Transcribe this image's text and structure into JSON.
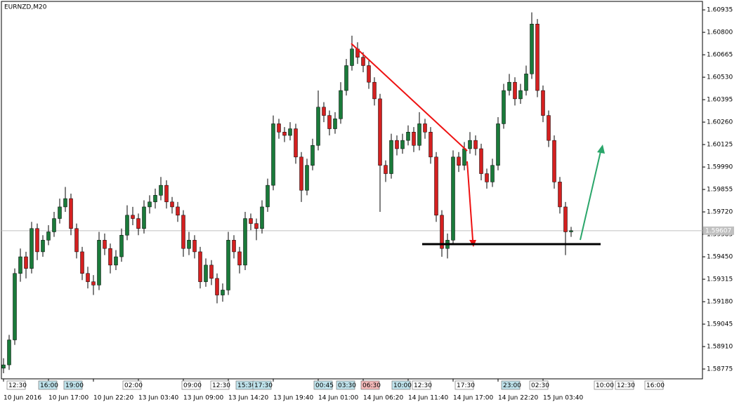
{
  "chart_data": {
    "type": "candlestick",
    "title": "EURNZD,M20",
    "bull_color": "#1a7a3a",
    "bear_color": "#d42020",
    "ylim": [
      1.58716,
      1.60986
    ],
    "yticks": [
      1.60935,
      {
        "value": 1.608,
        "label": "1.60800"
      },
      1.60665,
      {
        "value": 1.6053,
        "label": "1.60530"
      },
      1.60395,
      {
        "value": 1.6026,
        "label": "1.60260"
      },
      1.60125,
      {
        "value": 1.5999,
        "label": "1.59990"
      },
      1.59855,
      {
        "value": 1.5972,
        "label": "1.59720"
      },
      1.59585,
      {
        "value": 1.5945,
        "label": "1.59450"
      },
      1.59315,
      {
        "value": 1.5918,
        "label": "1.59180"
      },
      1.59045,
      {
        "value": 1.5891,
        "label": "1.58910"
      },
      1.58775
    ],
    "last_price": 1.59607,
    "categories": [
      "10 Jun 2016",
      null,
      null,
      null,
      null,
      null,
      null,
      null,
      "10 Jun 17:00",
      null,
      null,
      null,
      null,
      null,
      null,
      null,
      "10 Jun 22:20",
      null,
      null,
      null,
      null,
      null,
      null,
      null,
      "13 Jun 03:40",
      null,
      null,
      null,
      null,
      null,
      null,
      null,
      "13 Jun 09:00",
      null,
      null,
      null,
      null,
      null,
      null,
      null,
      "13 Jun 14:20",
      null,
      null,
      null,
      null,
      null,
      null,
      null,
      "13 Jun 19:40",
      null,
      null,
      null,
      null,
      null,
      null,
      null,
      "14 Jun 01:00",
      null,
      null,
      null,
      null,
      null,
      null,
      null,
      "14 Jun 06:20",
      null,
      null,
      null,
      null,
      null,
      null,
      null,
      "14 Jun 11:40",
      null,
      null,
      null,
      null,
      null,
      null,
      null,
      "14 Jun 17:00",
      null,
      null,
      null,
      null,
      null,
      null,
      null,
      "14 Jun 22:20",
      null,
      null,
      null,
      null,
      null,
      null,
      null,
      "15 Jun 03:40",
      null,
      null,
      null,
      null,
      null
    ],
    "open": [
      1.5878,
      1.588,
      1.5895,
      1.5935,
      1.5945,
      1.5938,
      1.5962,
      1.5948,
      1.5955,
      1.596,
      1.5968,
      1.5975,
      1.598,
      1.5962,
      1.5948,
      1.5935,
      1.593,
      1.5928,
      1.5955,
      1.595,
      1.594,
      1.5945,
      1.5958,
      1.597,
      1.5968,
      1.5962,
      1.5975,
      1.5978,
      1.5982,
      1.5988,
      1.5978,
      1.5975,
      1.597,
      1.595,
      1.5955,
      1.5948,
      1.593,
      1.594,
      1.5932,
      1.5922,
      1.5925,
      1.5955,
      1.5948,
      1.594,
      1.5968,
      1.5965,
      1.5962,
      1.5975,
      1.5988,
      1.6025,
      1.602,
      1.6018,
      1.6022,
      1.6005,
      1.5985,
      1.6,
      1.6012,
      1.6035,
      1.603,
      1.6022,
      1.6028,
      1.6045,
      1.606,
      1.607,
      1.6065,
      1.606,
      1.605,
      1.604,
      1.6,
      1.5995,
      1.6015,
      1.601,
      1.6015,
      1.602,
      1.6012,
      1.6025,
      1.602,
      1.6005,
      1.597,
      1.595,
      1.5955,
      1.6005,
      1.6,
      1.601,
      1.6015,
      1.601,
      1.5995,
      1.599,
      1.6,
      1.6025,
      1.6045,
      1.605,
      1.604,
      1.6045,
      1.6055,
      1.6085,
      1.6045,
      1.603,
      1.6015,
      1.599,
      1.5975,
      1.596
    ],
    "high": [
      1.5884,
      1.5898,
      1.5938,
      1.595,
      1.5948,
      1.5966,
      1.5965,
      1.5958,
      1.5964,
      1.5972,
      1.598,
      1.5987,
      1.5983,
      1.5965,
      1.5951,
      1.5939,
      1.5934,
      1.596,
      1.5959,
      1.5953,
      1.5949,
      1.5962,
      1.5976,
      1.5975,
      1.5971,
      1.5979,
      1.5982,
      1.5986,
      1.5993,
      1.5991,
      1.5981,
      1.5978,
      1.5973,
      1.596,
      1.5958,
      1.5951,
      1.5944,
      1.5943,
      1.5935,
      1.5929,
      1.596,
      1.5958,
      1.5951,
      1.5972,
      1.5971,
      1.5968,
      1.5979,
      1.5992,
      1.603,
      1.6028,
      1.6023,
      1.6026,
      1.6025,
      1.6008,
      1.6004,
      1.6016,
      1.6045,
      1.6038,
      1.6033,
      1.6032,
      1.605,
      1.6064,
      1.6078,
      1.6074,
      1.6068,
      1.6063,
      1.6053,
      1.6043,
      1.6003,
      1.6019,
      1.6018,
      1.6019,
      1.6024,
      1.6023,
      1.6032,
      1.6028,
      1.6023,
      1.6008,
      1.5973,
      1.5959,
      1.6009,
      1.6008,
      1.6014,
      1.602,
      1.6018,
      1.6013,
      1.5998,
      1.6004,
      1.6029,
      1.6049,
      1.6055,
      1.6053,
      1.6049,
      1.606,
      1.6092,
      1.6088,
      1.6048,
      1.6033,
      1.6018,
      1.5993,
      1.5978,
      1.5963
    ],
    "low": [
      1.5875,
      1.5877,
      1.5892,
      1.593,
      1.5932,
      1.5935,
      1.5943,
      1.5945,
      1.5952,
      1.5957,
      1.5965,
      1.5972,
      1.5958,
      1.5944,
      1.5931,
      1.5926,
      1.5922,
      1.5925,
      1.5946,
      1.5935,
      1.5937,
      1.5942,
      1.5955,
      1.5964,
      1.5958,
      1.5959,
      1.5971,
      1.5974,
      1.5979,
      1.5974,
      1.5971,
      1.5966,
      1.5945,
      1.5946,
      1.5944,
      1.5926,
      1.5927,
      1.5928,
      1.5917,
      1.5918,
      1.5922,
      1.5944,
      1.5935,
      1.5937,
      1.5961,
      1.5955,
      1.5959,
      1.5972,
      1.5985,
      1.6016,
      1.6014,
      1.6015,
      1.6001,
      1.5978,
      1.5982,
      1.5997,
      1.6009,
      1.6026,
      1.6018,
      1.6019,
      1.6025,
      1.6042,
      1.6057,
      1.6061,
      1.6056,
      1.6046,
      1.6036,
      1.5972,
      1.599,
      1.5992,
      1.6006,
      1.6007,
      1.6012,
      1.6008,
      1.6009,
      1.6016,
      1.6001,
      1.5966,
      1.5945,
      1.5944,
      1.5952,
      1.5996,
      1.5997,
      1.6007,
      1.6006,
      1.5991,
      1.5986,
      1.5987,
      1.5997,
      1.6022,
      1.6042,
      1.6036,
      1.6037,
      1.6042,
      1.6052,
      1.6041,
      1.6026,
      1.6011,
      1.5986,
      1.5971,
      1.5946,
      1.5957
    ],
    "close": [
      1.588,
      1.5895,
      1.5935,
      1.5945,
      1.5938,
      1.5962,
      1.5948,
      1.5955,
      1.596,
      1.5968,
      1.5975,
      1.598,
      1.5962,
      1.5948,
      1.5935,
      1.593,
      1.5928,
      1.5955,
      1.595,
      1.594,
      1.5945,
      1.5958,
      1.597,
      1.5968,
      1.5962,
      1.5975,
      1.5978,
      1.5982,
      1.5988,
      1.5978,
      1.5975,
      1.597,
      1.595,
      1.5955,
      1.5948,
      1.593,
      1.594,
      1.5932,
      1.5922,
      1.5925,
      1.5955,
      1.5948,
      1.594,
      1.5968,
      1.5965,
      1.5962,
      1.5975,
      1.5988,
      1.6025,
      1.602,
      1.6018,
      1.6022,
      1.6005,
      1.5985,
      1.6,
      1.6012,
      1.6035,
      1.603,
      1.6022,
      1.6028,
      1.6045,
      1.606,
      1.607,
      1.6065,
      1.606,
      1.605,
      1.604,
      1.6,
      1.5995,
      1.6015,
      1.601,
      1.6015,
      1.602,
      1.6012,
      1.6025,
      1.602,
      1.6005,
      1.597,
      1.595,
      1.5955,
      1.6005,
      1.6,
      1.601,
      1.6015,
      1.601,
      1.5995,
      1.599,
      1.6,
      1.6025,
      1.6045,
      1.605,
      1.604,
      1.6045,
      1.6055,
      1.6085,
      1.6045,
      1.603,
      1.6015,
      1.599,
      1.5975,
      1.596,
      1.59607
    ],
    "time_markers": [
      {
        "label": "12:30",
        "color": "#ffffff"
      },
      {
        "label": "16:00",
        "color": "#bfe3ec"
      },
      {
        "label": "19:00",
        "color": "#bfe3ec"
      },
      {
        "label": "02:00",
        "color": "#ffffff"
      },
      {
        "label": "09:00",
        "color": "#ffffff"
      },
      {
        "label": "12:30",
        "color": "#ffffff"
      },
      {
        "label": "15:30",
        "color": "#bfe3ec"
      },
      {
        "label": "17:30",
        "color": "#bfe3ec"
      },
      {
        "label": "00:45",
        "color": "#bfe3ec"
      },
      {
        "label": "03:30",
        "color": "#bfe3ec"
      },
      {
        "label": "06:30",
        "color": "#f4b8b8"
      },
      {
        "label": "10:00",
        "color": "#bfe3ec"
      },
      {
        "label": "12:30",
        "color": "#ffffff"
      },
      {
        "label": "17:30",
        "color": "#ffffff"
      },
      {
        "label": "23:00",
        "color": "#bfe3ec"
      },
      {
        "label": "02:30",
        "color": "#ffffff"
      },
      {
        "label": "10:00",
        "color": "#ffffff"
      },
      {
        "label": "12:30",
        "color": "#ffffff"
      },
      {
        "label": "16:00",
        "color": "#ffffff"
      }
    ]
  }
}
